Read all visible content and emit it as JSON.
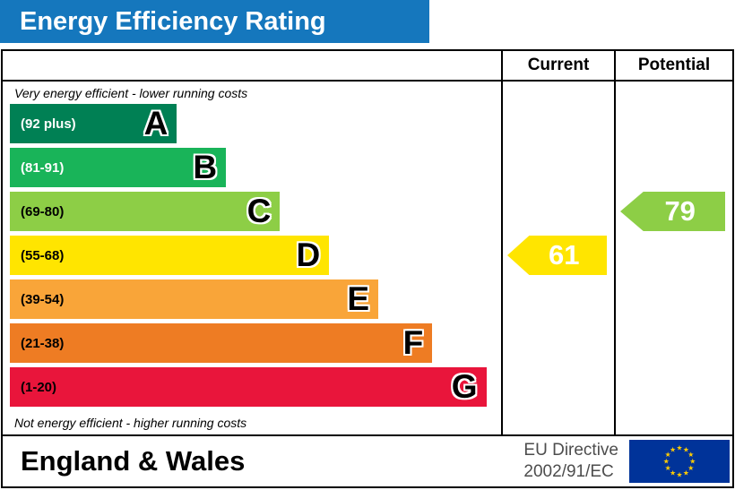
{
  "title": "Energy Efficiency Rating",
  "colors": {
    "title_bar": "#1577bd"
  },
  "header": {
    "current": "Current",
    "potential": "Potential"
  },
  "notes": {
    "top": "Very energy efficient - lower running costs",
    "bottom": "Not energy efficient - higher running costs"
  },
  "bands": [
    {
      "letter": "A",
      "range": "(92 plus)",
      "color": "#008054",
      "text_color": "#ffffff",
      "width": "34%"
    },
    {
      "letter": "B",
      "range": "(81-91)",
      "color": "#19b459",
      "text_color": "#ffffff",
      "width": "44%"
    },
    {
      "letter": "C",
      "range": "(69-80)",
      "color": "#8dce46",
      "text_color": "#000000",
      "width": "55%"
    },
    {
      "letter": "D",
      "range": "(55-68)",
      "color": "#ffe500",
      "text_color": "#000000",
      "width": "65%"
    },
    {
      "letter": "E",
      "range": "(39-54)",
      "color": "#f9a539",
      "text_color": "#000000",
      "width": "75%"
    },
    {
      "letter": "F",
      "range": "(21-38)",
      "color": "#ee7c23",
      "text_color": "#000000",
      "width": "86%"
    },
    {
      "letter": "G",
      "range": "(1-20)",
      "color": "#e9153b",
      "text_color": "#000000",
      "width": "97%"
    }
  ],
  "ratings": {
    "current": {
      "value": "61",
      "band": "D",
      "color": "#ffe500"
    },
    "potential": {
      "value": "79",
      "band": "C",
      "color": "#8dce46"
    }
  },
  "footer": {
    "region": "England & Wales",
    "directive_line1": "EU Directive",
    "directive_line2": "2002/91/EC",
    "flag": {
      "background": "#003399",
      "star_color": "#ffcc00"
    }
  },
  "chart_data": {
    "type": "bar",
    "title": "Energy Efficiency Rating",
    "categories": [
      "A",
      "B",
      "C",
      "D",
      "E",
      "F",
      "G"
    ],
    "band_ranges": [
      "92 plus",
      "81-91",
      "69-80",
      "55-68",
      "39-54",
      "21-38",
      "1-20"
    ],
    "band_colors": [
      "#008054",
      "#19b459",
      "#8dce46",
      "#ffe500",
      "#f9a539",
      "#ee7c23",
      "#e9153b"
    ],
    "band_relative_widths_pct": [
      34,
      44,
      55,
      65,
      75,
      86,
      97
    ],
    "series": [
      {
        "name": "Current",
        "value": 61,
        "band": "D"
      },
      {
        "name": "Potential",
        "value": 79,
        "band": "C"
      }
    ],
    "annotations": [
      "Very energy efficient - lower running costs",
      "Not energy efficient - higher running costs"
    ],
    "footer": "England & Wales — EU Directive 2002/91/EC",
    "legend_position": "column headers top-right"
  }
}
